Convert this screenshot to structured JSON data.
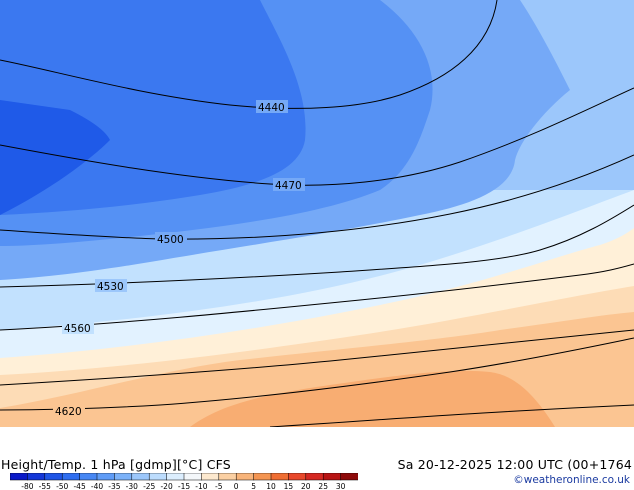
{
  "map": {
    "contours": [
      {
        "value": 4440,
        "label": "4440"
      },
      {
        "value": 4470,
        "label": "4470"
      },
      {
        "value": 4500,
        "label": "4500"
      },
      {
        "value": 4530,
        "label": "4530"
      },
      {
        "value": 4560,
        "label": "4560"
      },
      {
        "value": 4620,
        "label": "4620"
      }
    ],
    "colors": {
      "darkest": "#1f5ae8",
      "dark": "#3b78f0",
      "mid": "#5591f4",
      "light": "#75a9f7",
      "pale": "#9cc7fb",
      "palest": "#c2e1fe",
      "cold_edge": "#e2f2ff",
      "cream": "#fff0d8",
      "peach": "#fddcb6",
      "orange_light": "#fbc592",
      "orange": "#f8ad72"
    }
  },
  "footer": {
    "title": "Height/Temp. 1 hPa [gdmp][°C] CFS",
    "valid": "Sa 20-12-2025 12:00 UTC (00+1764",
    "credit": "©weatheronline.co.uk"
  },
  "scale": {
    "ticks": [
      "-80",
      "-55",
      "-50",
      "-45",
      "-40",
      "-35",
      "-30",
      "-25",
      "-20",
      "-15",
      "-10",
      "-5",
      "0",
      "5",
      "10",
      "15",
      "20",
      "25",
      "30"
    ],
    "colors": [
      "#0b1ac8",
      "#1437d8",
      "#1f55e6",
      "#2f6ef0",
      "#4787f4",
      "#5f9cf7",
      "#7cb2f9",
      "#9cc7fb",
      "#bcdcfd",
      "#dceefe",
      "#f4f7fa",
      "#fde9cf",
      "#fbd0a3",
      "#f8b47a",
      "#f49552",
      "#ef6e33",
      "#e8482b",
      "#d52822",
      "#b81414",
      "#8e0a0a"
    ]
  }
}
